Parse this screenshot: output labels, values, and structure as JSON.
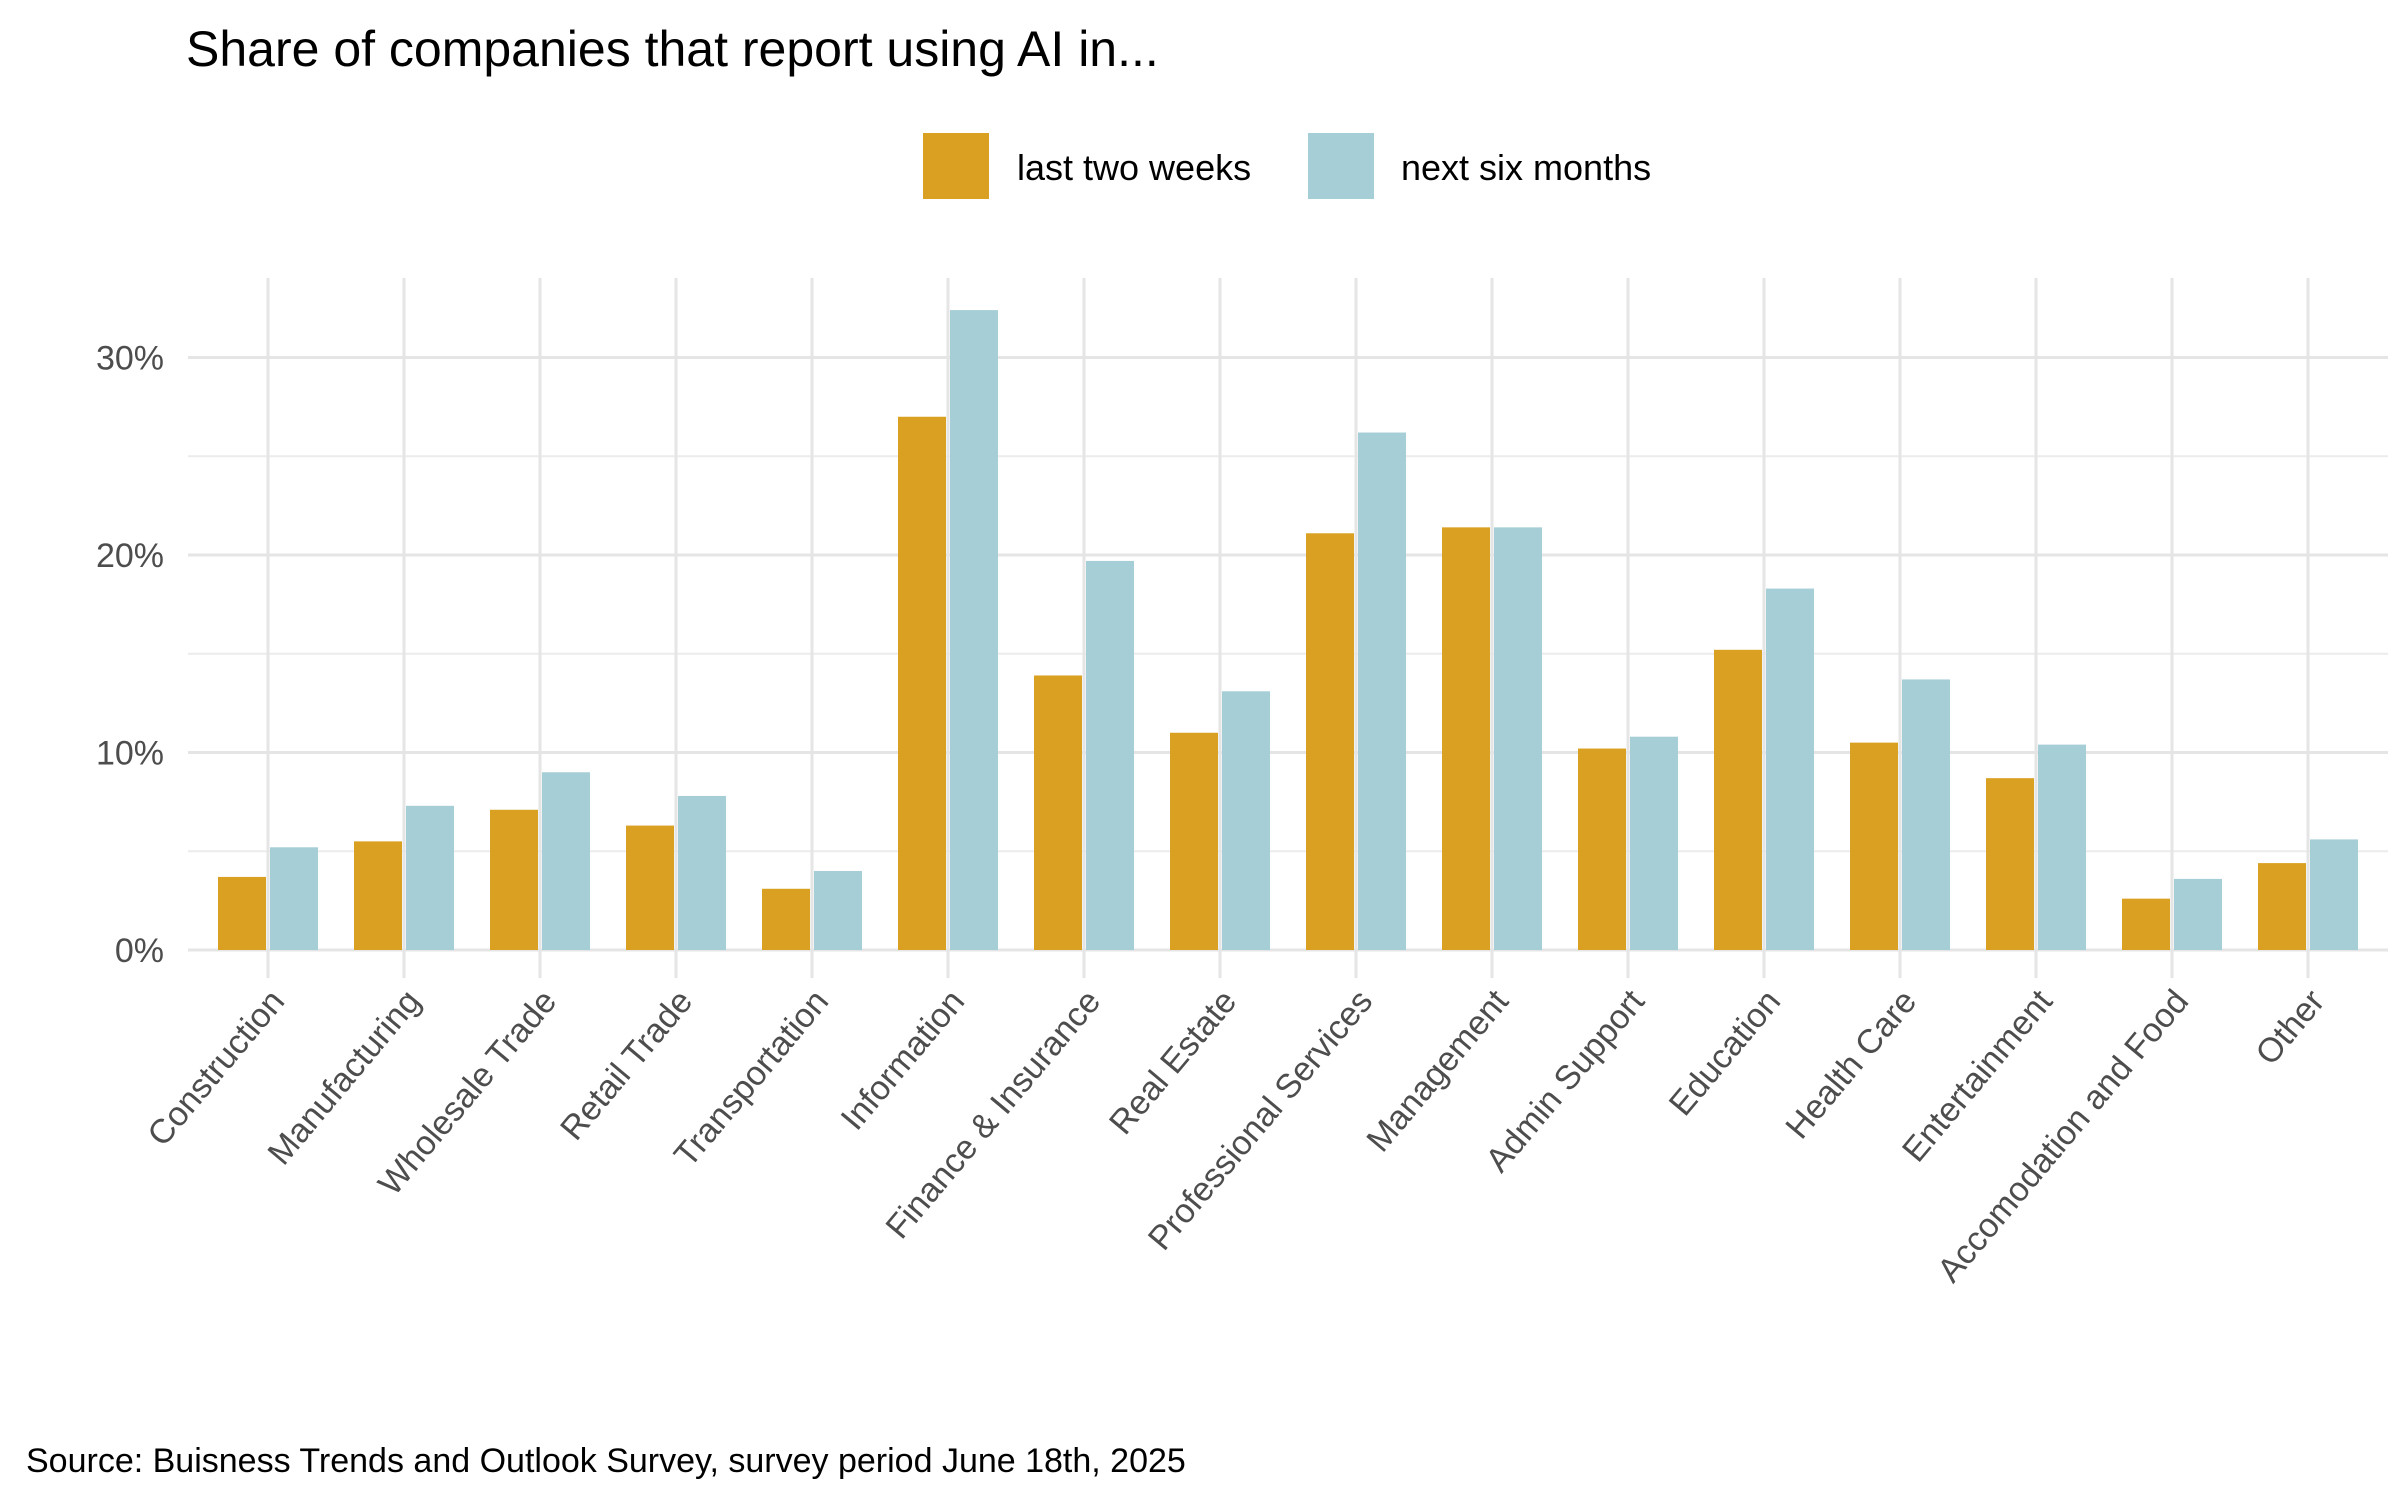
{
  "chart_data": {
    "type": "bar",
    "title": "Share of companies that report using AI in...",
    "caption": "Source: Buisness Trends and Outlook Survey, survey period June 18th, 2025",
    "xlabel": "",
    "ylabel": "",
    "ylim": [
      -1.7,
      34
    ],
    "yticks": [
      0,
      10,
      20,
      30
    ],
    "ytick_labels": [
      "0%",
      "10%",
      "20%",
      "30%"
    ],
    "grid": true,
    "legend_position": "top",
    "categories": [
      "Construction",
      "Manufacturing",
      "Wholesale Trade",
      "Retail Trade",
      "Transportation",
      "Information",
      "Finance & Insurance",
      "Real Estate",
      "Professional Services",
      "Management",
      "Admin Support",
      "Education",
      "Health Care",
      "Entertainment",
      "Accomodation and Food",
      "Other"
    ],
    "series": [
      {
        "name": "last two weeks",
        "color": "#DAA021",
        "values": [
          3.7,
          5.5,
          7.1,
          6.3,
          3.1,
          27.0,
          13.9,
          11.0,
          21.1,
          21.4,
          10.2,
          15.2,
          10.5,
          8.7,
          2.6,
          4.4
        ]
      },
      {
        "name": "next six months",
        "color": "#A6CED6",
        "values": [
          5.2,
          7.3,
          9.0,
          7.8,
          4.0,
          32.4,
          19.7,
          13.1,
          26.2,
          21.4,
          10.8,
          18.3,
          13.7,
          10.4,
          3.6,
          5.6
        ]
      }
    ]
  }
}
